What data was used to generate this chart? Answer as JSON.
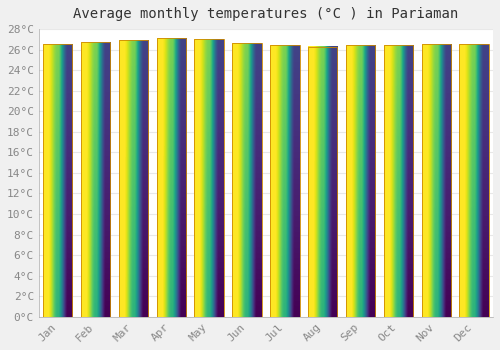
{
  "title": "Average monthly temperatures (°C ) in Pariaman",
  "months": [
    "Jan",
    "Feb",
    "Mar",
    "Apr",
    "May",
    "Jun",
    "Jul",
    "Aug",
    "Sep",
    "Oct",
    "Nov",
    "Dec"
  ],
  "temperatures": [
    26.5,
    26.7,
    26.9,
    27.1,
    27.0,
    26.6,
    26.4,
    26.3,
    26.4,
    26.4,
    26.5,
    26.5
  ],
  "bar_color_top": "#FFCC33",
  "bar_color_bottom": "#FFA500",
  "bar_edge_color": "#CC8800",
  "ylim": [
    0,
    28
  ],
  "ytick_step": 2,
  "plot_bg_color": "#ffffff",
  "fig_bg_color": "#f0f0f0",
  "grid_color": "#e8e8e8",
  "title_fontsize": 10,
  "tick_fontsize": 8,
  "font_family": "monospace",
  "tick_color": "#888888",
  "title_color": "#333333"
}
